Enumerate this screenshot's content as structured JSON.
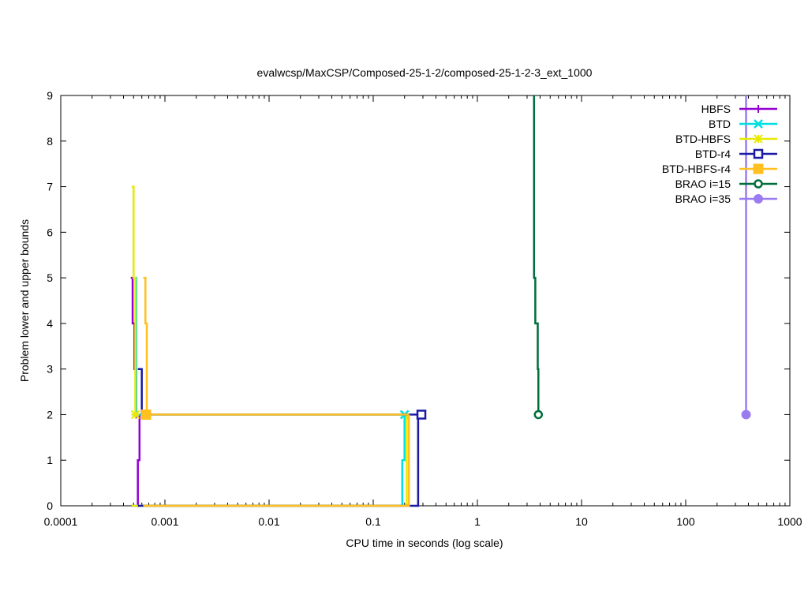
{
  "chart_data": {
    "type": "line",
    "title": "evalwcsp/MaxCSP/Composed-25-1-2/composed-25-1-2-3_ext_1000",
    "xlabel": "CPU time in seconds (log scale)",
    "ylabel": "Problem lower and upper bounds",
    "xscale": "log",
    "xlim": [
      0.0001,
      1000
    ],
    "ylim": [
      0,
      9
    ],
    "x_ticks": [
      0.0001,
      0.001,
      0.01,
      0.1,
      1,
      10,
      100,
      1000
    ],
    "x_tick_labels": [
      "0.0001",
      "0.001",
      "0.01",
      "0.1",
      "1",
      "10",
      "100",
      "1000"
    ],
    "y_ticks": [
      0,
      1,
      2,
      3,
      4,
      5,
      6,
      7,
      8,
      9
    ],
    "y_tick_labels": [
      "0",
      "1",
      "2",
      "3",
      "4",
      "5",
      "6",
      "7",
      "8",
      "9"
    ],
    "grid": false,
    "legend_position": "top-right",
    "series": [
      {
        "name": "HBFS",
        "color": "#9400d3",
        "marker": "plus",
        "upper": [
          [
            0.00047,
            5
          ],
          [
            0.00049,
            5
          ],
          [
            0.00049,
            4
          ],
          [
            0.00051,
            4
          ],
          [
            0.00051,
            3
          ],
          [
            0.00053,
            3
          ],
          [
            0.00053,
            2
          ]
        ],
        "lower": [
          [
            0.00048,
            0
          ],
          [
            0.00055,
            0
          ],
          [
            0.00055,
            1
          ],
          [
            0.00057,
            1
          ],
          [
            0.00057,
            2
          ]
        ],
        "final": [
          0.00053,
          2
        ]
      },
      {
        "name": "BTD",
        "color": "#00e0e0",
        "marker": "x",
        "upper": [
          [
            0.0005,
            5
          ],
          [
            0.00053,
            5
          ],
          [
            0.00053,
            2
          ],
          [
            0.2,
            2
          ]
        ],
        "lower": [
          [
            0.0005,
            0
          ],
          [
            0.19,
            0
          ],
          [
            0.19,
            1
          ],
          [
            0.2,
            1
          ],
          [
            0.2,
            2
          ]
        ],
        "final": [
          0.2,
          2
        ]
      },
      {
        "name": "BTD-HBFS",
        "color": "#e8e800",
        "marker": "star",
        "upper": [
          [
            0.00048,
            7
          ],
          [
            0.0005,
            7
          ],
          [
            0.0005,
            5
          ],
          [
            0.00052,
            5
          ],
          [
            0.00052,
            2
          ]
        ],
        "lower": [
          [
            0.00048,
            0
          ],
          [
            0.21,
            0
          ],
          [
            0.21,
            2
          ]
        ],
        "final": [
          0.00052,
          2
        ]
      },
      {
        "name": "BTD-r4",
        "color": "#1a1aa6",
        "marker": "box",
        "upper": [
          [
            0.00055,
            3
          ],
          [
            0.0006,
            3
          ],
          [
            0.0006,
            2
          ],
          [
            0.29,
            2
          ]
        ],
        "lower": [
          [
            0.00055,
            0
          ],
          [
            0.27,
            0
          ],
          [
            0.27,
            2
          ],
          [
            0.29,
            2
          ]
        ],
        "final": [
          0.29,
          2
        ]
      },
      {
        "name": "BTD-HBFS-r4",
        "color": "#ffc020",
        "marker": "filled-box",
        "upper": [
          [
            0.00062,
            5
          ],
          [
            0.00065,
            5
          ],
          [
            0.00065,
            4
          ],
          [
            0.00067,
            4
          ],
          [
            0.00067,
            2
          ],
          [
            0.22,
            2
          ]
        ],
        "lower": [
          [
            0.00062,
            0
          ],
          [
            0.22,
            0
          ],
          [
            0.22,
            2
          ]
        ],
        "final": [
          0.00066,
          2
        ]
      },
      {
        "name": "BRAO i=15",
        "color": "#006e3a",
        "marker": "circle",
        "upper": [
          [
            3.5,
            9
          ],
          [
            3.5,
            5
          ],
          [
            3.6,
            5
          ],
          [
            3.6,
            4
          ],
          [
            3.8,
            4
          ],
          [
            3.8,
            3
          ],
          [
            3.85,
            3
          ],
          [
            3.85,
            2
          ]
        ],
        "lower": [],
        "final": [
          3.85,
          2
        ]
      },
      {
        "name": "BRAO i=35",
        "color": "#9b7cf0",
        "marker": "filled-circle",
        "upper": [
          [
            380,
            9
          ],
          [
            380,
            2
          ]
        ],
        "lower": [],
        "final": [
          380,
          2
        ]
      }
    ]
  }
}
